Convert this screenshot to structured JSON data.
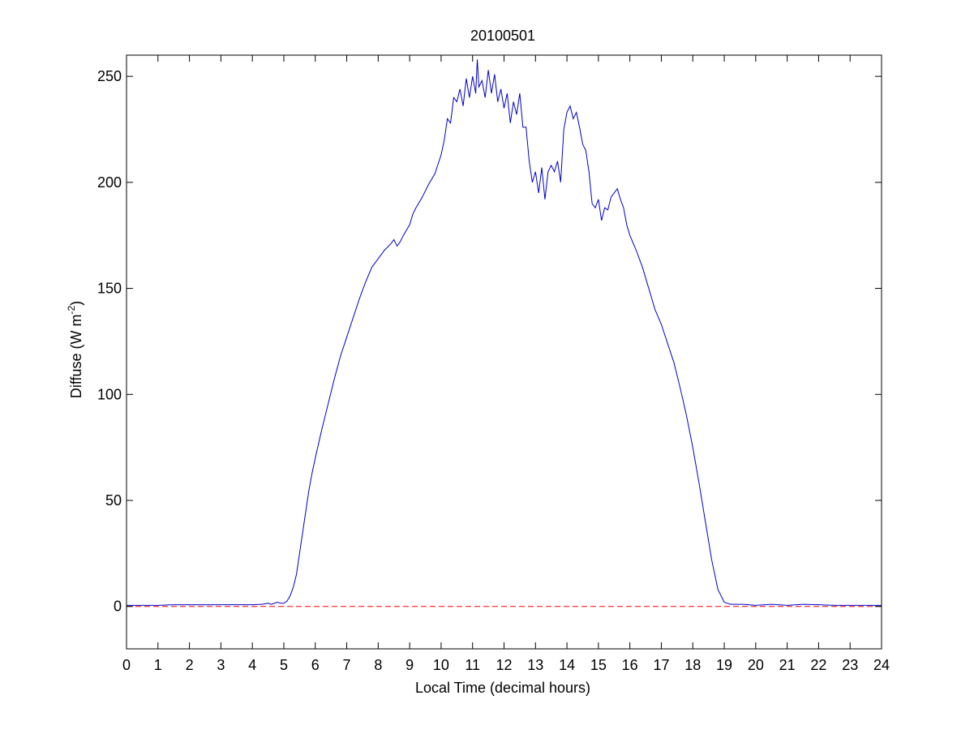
{
  "chart_data": {
    "type": "line",
    "title": "20100501",
    "xlabel": "Local Time (decimal hours)",
    "ylabel_main": "Diffuse (W m",
    "ylabel_sup": "-2",
    "ylabel_close": ")",
    "xlim": [
      0,
      24
    ],
    "ylim": [
      -20,
      260
    ],
    "xticks": [
      0,
      1,
      2,
      3,
      4,
      5,
      6,
      7,
      8,
      9,
      10,
      11,
      12,
      13,
      14,
      15,
      16,
      17,
      18,
      19,
      20,
      21,
      22,
      23,
      24
    ],
    "xtick_labels": [
      "0",
      "1",
      "2",
      "3",
      "4",
      "5",
      "6",
      "7",
      "8",
      "9",
      "10",
      "11",
      "12",
      "13",
      "14",
      "15",
      "16",
      "17",
      "18",
      "19",
      "20",
      "21",
      "22",
      "23",
      "24"
    ],
    "yticks": [
      0,
      50,
      100,
      150,
      200,
      250
    ],
    "ytick_labels": [
      "0",
      "50",
      "100",
      "150",
      "200",
      "250"
    ],
    "grid": false,
    "series": [
      {
        "color": "#0000c8",
        "x": [
          0.0,
          0.5,
          1.0,
          1.5,
          2.0,
          2.5,
          3.0,
          3.5,
          4.0,
          4.3,
          4.5,
          4.6,
          4.8,
          4.9,
          5.0,
          5.1,
          5.2,
          5.3,
          5.4,
          5.5,
          5.6,
          5.7,
          5.8,
          5.9,
          6.0,
          6.2,
          6.4,
          6.6,
          6.8,
          7.0,
          7.2,
          7.4,
          7.6,
          7.8,
          8.0,
          8.2,
          8.4,
          8.5,
          8.6,
          8.7,
          8.8,
          9.0,
          9.1,
          9.2,
          9.4,
          9.6,
          9.8,
          10.0,
          10.1,
          10.2,
          10.3,
          10.4,
          10.5,
          10.6,
          10.7,
          10.8,
          10.9,
          11.0,
          11.1,
          11.15,
          11.2,
          11.3,
          11.4,
          11.5,
          11.6,
          11.7,
          11.8,
          11.9,
          12.0,
          12.1,
          12.2,
          12.3,
          12.4,
          12.5,
          12.6,
          12.7,
          12.8,
          12.9,
          13.0,
          13.1,
          13.2,
          13.3,
          13.4,
          13.5,
          13.6,
          13.7,
          13.8,
          13.9,
          14.0,
          14.1,
          14.2,
          14.3,
          14.4,
          14.5,
          14.6,
          14.7,
          14.8,
          14.9,
          15.0,
          15.1,
          15.2,
          15.3,
          15.4,
          15.5,
          15.6,
          15.7,
          15.8,
          15.9,
          16.0,
          16.2,
          16.4,
          16.6,
          16.8,
          17.0,
          17.2,
          17.4,
          17.6,
          17.8,
          18.0,
          18.2,
          18.4,
          18.6,
          18.8,
          19.0,
          19.1,
          19.2,
          19.3,
          19.4,
          19.6,
          20.0,
          20.5,
          21.0,
          21.5,
          22.0,
          22.5,
          23.0,
          23.5,
          24.0
        ],
        "y": [
          0.5,
          0.5,
          0.5,
          0.8,
          0.8,
          0.8,
          0.8,
          0.8,
          0.8,
          1.0,
          1.5,
          1.0,
          2.0,
          1.5,
          1.5,
          2.5,
          5.0,
          9.0,
          15.0,
          25.0,
          35.0,
          45.0,
          55.0,
          63.0,
          70.0,
          83.0,
          95.0,
          107.0,
          118.0,
          127.0,
          136.0,
          145.0,
          153.0,
          160.0,
          164.0,
          168.0,
          171.0,
          173.0,
          170.0,
          172.0,
          175.0,
          180.0,
          185.0,
          188.0,
          193.0,
          199.0,
          204.0,
          213.0,
          220.0,
          230.0,
          228.0,
          240.0,
          238.0,
          244.0,
          236.0,
          249.0,
          240.0,
          250.0,
          242.0,
          258.0,
          245.0,
          248.0,
          240.0,
          253.0,
          242.0,
          251.0,
          238.0,
          244.0,
          235.0,
          242.0,
          228.0,
          238.0,
          232.0,
          242.0,
          226.0,
          226.0,
          210.0,
          200.0,
          205.0,
          195.0,
          207.0,
          192.0,
          205.0,
          208.0,
          205.0,
          210.0,
          200.0,
          225.0,
          233.0,
          236.0,
          230.0,
          233.0,
          226.0,
          218.0,
          215.0,
          205.0,
          190.0,
          188.0,
          192.0,
          182.0,
          188.0,
          187.0,
          193.0,
          195.0,
          197.0,
          192.0,
          188.0,
          180.0,
          175.0,
          168.0,
          160.0,
          150.0,
          140.0,
          133.0,
          124.0,
          115.0,
          103.0,
          90.0,
          75.0,
          58.0,
          40.0,
          22.0,
          8.0,
          2.0,
          1.5,
          1.0,
          1.0,
          1.0,
          1.0,
          0.5,
          1.0,
          0.5,
          1.0,
          0.8,
          0.5,
          0.5,
          0.5,
          0.5
        ]
      },
      {
        "style": "dashed",
        "color": "#ff0000",
        "x": [
          0,
          24
        ],
        "y": [
          0,
          0
        ]
      }
    ]
  }
}
